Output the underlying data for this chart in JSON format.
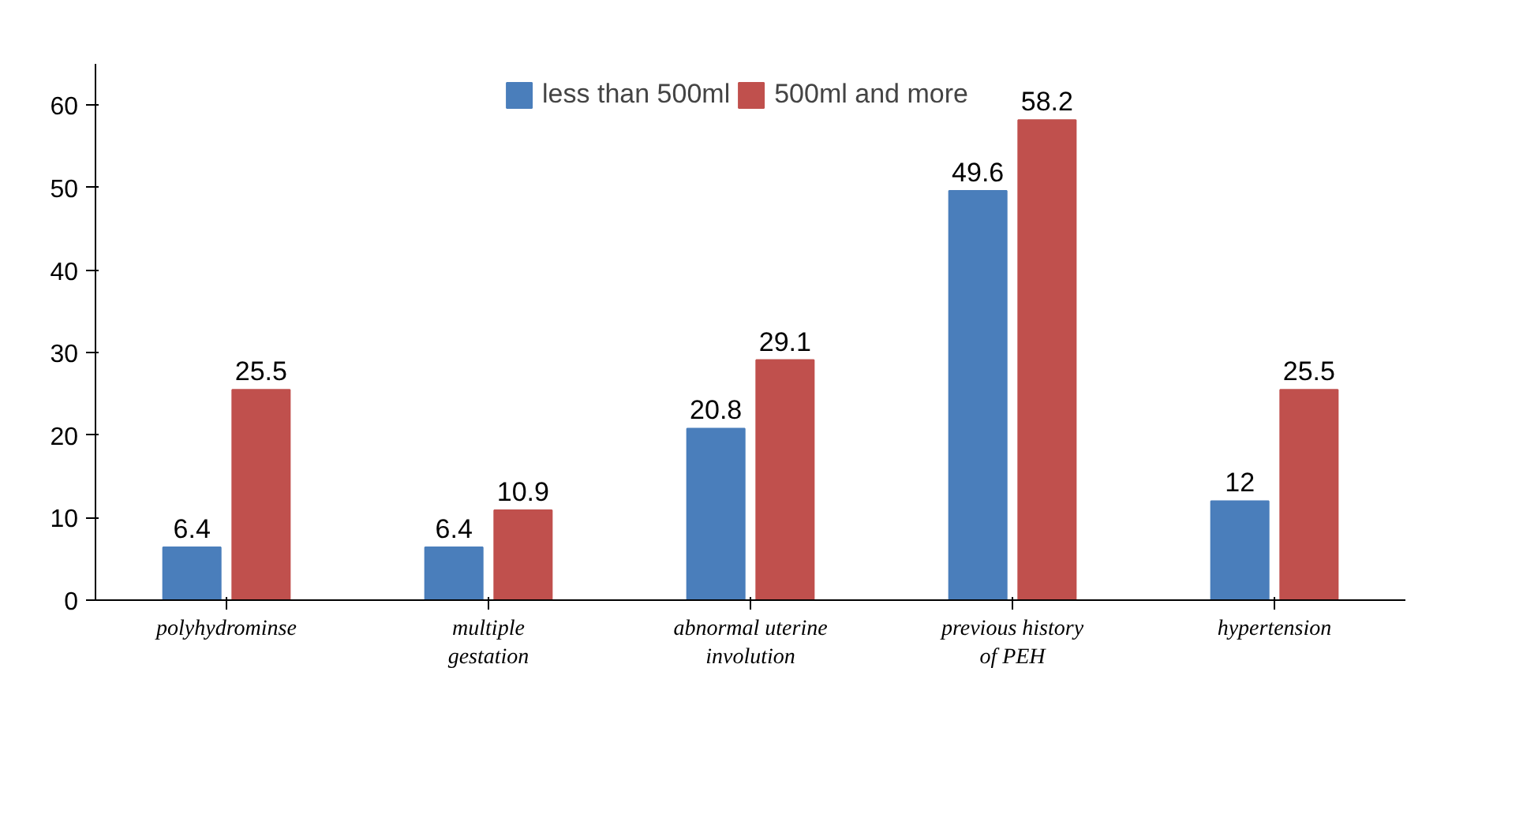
{
  "chart_data": {
    "type": "bar",
    "categories": [
      "polyhydrominse",
      "multiple\ngestation",
      "abnormal uterine\ninvolution",
      "previous history\nof PEH",
      "hypertension"
    ],
    "series": [
      {
        "name": "less than 500ml",
        "color": "#4a7ebb",
        "values": [
          6.4,
          6.4,
          20.8,
          49.6,
          12
        ]
      },
      {
        "name": "500ml and more",
        "color": "#c0504d",
        "values": [
          25.5,
          10.9,
          29.1,
          58.2,
          25.5
        ]
      }
    ],
    "ylim": [
      0,
      65
    ],
    "yticks": [
      0,
      10,
      20,
      30,
      40,
      50,
      60
    ],
    "data_labels": true,
    "grid": false,
    "legend": "top"
  }
}
